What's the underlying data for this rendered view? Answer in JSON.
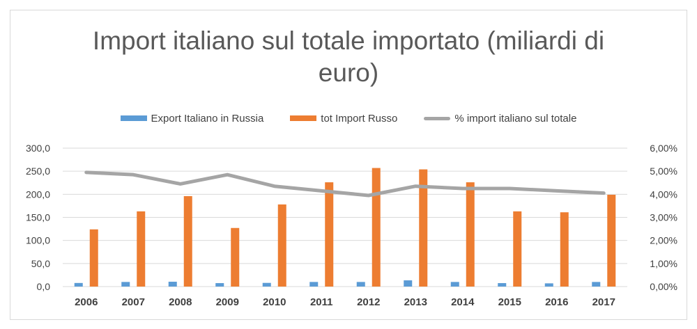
{
  "chart_data": {
    "type": "bar",
    "title_lines": [
      "Import  italiano sul totale importato (miliardi di",
      "euro)"
    ],
    "categories": [
      "2006",
      "2007",
      "2008",
      "2009",
      "2010",
      "2011",
      "2012",
      "2013",
      "2014",
      "2015",
      "2016",
      "2017"
    ],
    "series": [
      {
        "name": "Export Italiano in Russia",
        "kind": "bar",
        "axis": "left",
        "values": [
          7.8,
          10.0,
          10.5,
          7.5,
          8.0,
          10.0,
          10.0,
          13.5,
          10.0,
          7.5,
          7.0,
          10.0
        ]
      },
      {
        "name": "tot Import Russo",
        "kind": "bar",
        "axis": "left",
        "values": [
          124.0,
          163.0,
          196.0,
          127.0,
          178.0,
          226.0,
          257.0,
          254.0,
          226.0,
          163.0,
          161.0,
          199.0
        ]
      },
      {
        "name": "% import italiano sul totale",
        "kind": "line",
        "axis": "right",
        "values": [
          4.95,
          4.85,
          4.45,
          4.85,
          4.35,
          4.15,
          3.95,
          4.35,
          4.25,
          4.25,
          4.15,
          4.05
        ]
      }
    ],
    "y_left": {
      "min": 0,
      "max": 300,
      "step": 50,
      "tick_labels": [
        "0,0",
        "50,0",
        "100,0",
        "150,0",
        "200,0",
        "250,0",
        "300,0"
      ]
    },
    "y_right": {
      "min": 0,
      "max": 6,
      "step": 1,
      "unit": "%",
      "tick_labels": [
        "0,00%",
        "1,00%",
        "2,00%",
        "3,00%",
        "4,00%",
        "5,00%",
        "6,00%"
      ]
    },
    "grid": true,
    "legend_position": "top",
    "colors": {
      "export": "#5b9bd5",
      "import": "#ed7d31",
      "line": "#a5a5a5",
      "grid": "#d9d9d9",
      "text": "#404040"
    }
  }
}
